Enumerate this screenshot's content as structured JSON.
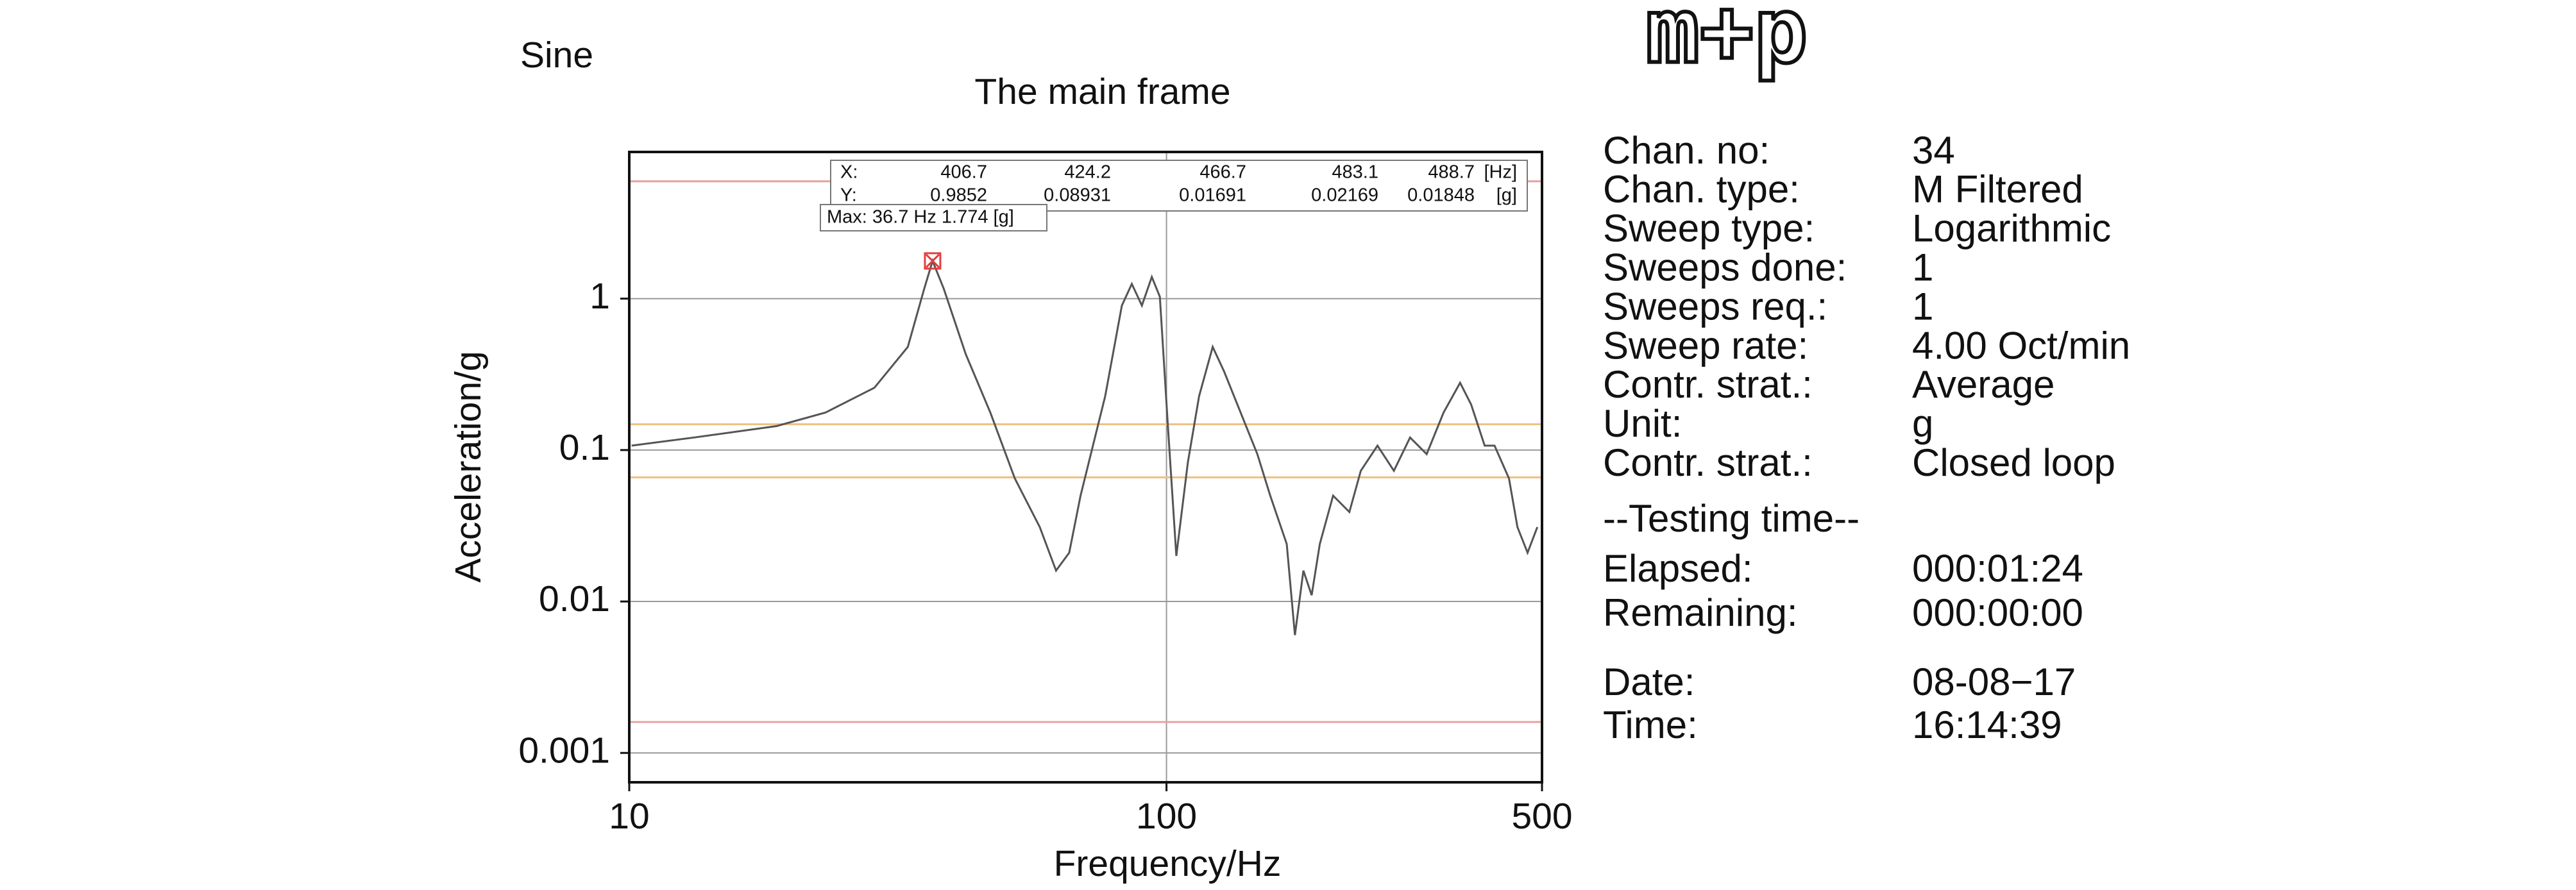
{
  "chart_data": {
    "type": "line",
    "corner_label": "Sine",
    "title": "The main frame",
    "x_label": "Frequency/Hz",
    "y_label": "Acceleration/g",
    "log_x": true,
    "log_y": true,
    "grid": true,
    "color": "#555555",
    "x": [
      10.1,
      13.2,
      18.8,
      23.2,
      28.6,
      33,
      35.4,
      36.7,
      38.5,
      42.3,
      47,
      52.2,
      58.1,
      62.3,
      65.9,
      69.2,
      76.9,
      82.6,
      86.2,
      90,
      93.9,
      97.2,
      100.7,
      104.3,
      109.6,
      115,
      121.9,
      128,
      137.4,
      147.6,
      156,
      167.4,
      173.4,
      179.8,
      186.3,
      192.9,
      204.2,
      219,
      230,
      247,
      265,
      284,
      305,
      328,
      352,
      369,
      391,
      408,
      434,
      450,
      470,
      490
    ],
    "values": [
      0.107,
      0.121,
      0.144,
      0.177,
      0.258,
      0.48,
      1.16,
      1.774,
      1.16,
      0.43,
      0.177,
      0.065,
      0.031,
      0.016,
      0.021,
      0.05,
      0.227,
      0.9,
      1.25,
      0.9,
      1.39,
      1.03,
      0.137,
      0.02,
      0.083,
      0.227,
      0.48,
      0.33,
      0.177,
      0.094,
      0.05,
      0.024,
      0.006,
      0.016,
      0.011,
      0.024,
      0.05,
      0.039,
      0.073,
      0.107,
      0.073,
      0.121,
      0.094,
      0.177,
      0.278,
      0.2,
      0.107,
      0.107,
      0.065,
      0.031,
      0.021,
      0.031
    ],
    "xlim": [
      10,
      500
    ],
    "xticks": [
      10,
      100,
      500
    ],
    "ylim": [
      0.00064,
      9.3
    ],
    "yticks": [
      0.001,
      0.01,
      0.1,
      1
    ],
    "limit_lines": [
      {
        "value": 5.95,
        "color": "#e8a0a0"
      },
      {
        "value": 0.148,
        "color": "#f0c080"
      },
      {
        "value": 0.066,
        "color": "#f0c080"
      },
      {
        "value": 0.0016,
        "color": "#e8a0a0"
      }
    ],
    "cursor_table": {
      "x_label": "X:",
      "x_values": [
        "406.7",
        "424.2",
        "466.7",
        "483.1",
        "488.7"
      ],
      "x_unit": "[Hz]",
      "y_label": "Y:",
      "y_values": [
        "0.9852",
        "0.08931",
        "0.01691",
        "0.02169",
        "0.01848"
      ],
      "y_unit": "[g]"
    },
    "max_marker": {
      "x": 36.7,
      "y": 1.774,
      "label": "Max: 36.7 Hz 1.774 [g]"
    }
  },
  "side_panel": {
    "logo": "m+p",
    "info": [
      {
        "label": "Chan. no:",
        "value": "34"
      },
      {
        "label": "Chan. type:",
        "value": "M Filtered"
      },
      {
        "label": "Sweep type:",
        "value": "Logarithmic"
      },
      {
        "label": "Sweeps done:",
        "value": "1"
      },
      {
        "label": "Sweeps req.:",
        "value": "1"
      },
      {
        "label": "Sweep rate:",
        "value": "4.00 Oct/min"
      },
      {
        "label": "Contr. strat.:",
        "value": "Average"
      },
      {
        "label": "Unit:",
        "value": "g"
      },
      {
        "label": "Contr. strat.:",
        "value": "Closed loop"
      }
    ],
    "testing_heading": "--Testing time--",
    "testing": [
      {
        "label": "Elapsed:",
        "value": "000:01:24"
      },
      {
        "label": "Remaining:",
        "value": "000:00:00"
      }
    ],
    "stamp": [
      {
        "label": "Date:",
        "value": "08-08−17"
      },
      {
        "label": "Time:",
        "value": "16:14:39"
      }
    ]
  }
}
